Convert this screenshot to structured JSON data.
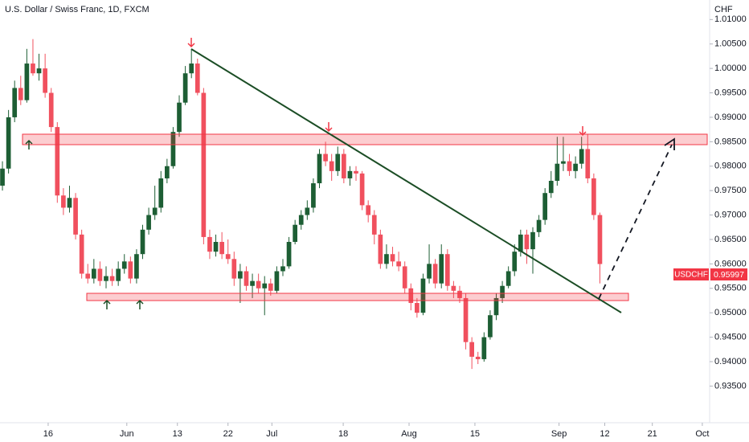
{
  "chart_data": {
    "type": "candlestick",
    "title": "U.S. Dollar / Swiss Franc, 1D, FXCM",
    "y_axis_label": "CHF",
    "symbol": "USDCHF",
    "last_price_label": "0.95997",
    "up_color": "#1d5e34",
    "down_color": "#f0505e",
    "ohlc": [
      [
        0.976,
        0.981,
        0.975,
        0.9795
      ],
      [
        0.9795,
        0.9915,
        0.9785,
        0.99
      ],
      [
        0.99,
        0.9975,
        0.989,
        0.996
      ],
      [
        0.996,
        0.9985,
        0.9925,
        0.9935
      ],
      [
        0.9935,
        1.004,
        0.993,
        1.001
      ],
      [
        1.001,
        1.006,
        0.9985,
        0.999
      ],
      [
        0.999,
        1.003,
        0.9975,
        1.0
      ],
      [
        1.0,
        1.003,
        0.994,
        0.995
      ],
      [
        0.995,
        0.996,
        0.987,
        0.988
      ],
      [
        0.988,
        0.989,
        0.9725,
        0.974
      ],
      [
        0.974,
        0.9755,
        0.97,
        0.9715
      ],
      [
        0.9715,
        0.976,
        0.9705,
        0.9735
      ],
      [
        0.9735,
        0.9745,
        0.965,
        0.966
      ],
      [
        0.966,
        0.967,
        0.957,
        0.958
      ],
      [
        0.958,
        0.96,
        0.956,
        0.957
      ],
      [
        0.957,
        0.961,
        0.956,
        0.959
      ],
      [
        0.959,
        0.9605,
        0.9555,
        0.9565
      ],
      [
        0.9565,
        0.9595,
        0.955,
        0.9575
      ],
      [
        0.9575,
        0.959,
        0.9555,
        0.9565
      ],
      [
        0.9565,
        0.9605,
        0.9555,
        0.959
      ],
      [
        0.959,
        0.962,
        0.958,
        0.9605
      ],
      [
        0.9605,
        0.9615,
        0.956,
        0.957
      ],
      [
        0.957,
        0.963,
        0.956,
        0.962
      ],
      [
        0.962,
        0.968,
        0.961,
        0.967
      ],
      [
        0.967,
        0.9715,
        0.966,
        0.97
      ],
      [
        0.97,
        0.976,
        0.969,
        0.9715
      ],
      [
        0.9715,
        0.979,
        0.9705,
        0.9775
      ],
      [
        0.9775,
        0.9815,
        0.9765,
        0.98
      ],
      [
        0.98,
        0.988,
        0.9795,
        0.987
      ],
      [
        0.987,
        0.9945,
        0.986,
        0.993
      ],
      [
        0.993,
        1.0005,
        0.9925,
        0.999
      ],
      [
        0.999,
        1.004,
        0.998,
        1.001
      ],
      [
        1.001,
        1.002,
        0.9945,
        0.995
      ],
      [
        0.995,
        0.996,
        0.964,
        0.9655
      ],
      [
        0.9655,
        0.967,
        0.961,
        0.9625
      ],
      [
        0.9625,
        0.966,
        0.9615,
        0.9645
      ],
      [
        0.9645,
        0.9665,
        0.961,
        0.962
      ],
      [
        0.962,
        0.965,
        0.96,
        0.961
      ],
      [
        0.961,
        0.9625,
        0.9555,
        0.957
      ],
      [
        0.957,
        0.96,
        0.952,
        0.9585
      ],
      [
        0.9585,
        0.9595,
        0.9545,
        0.9555
      ],
      [
        0.9555,
        0.958,
        0.953,
        0.9565
      ],
      [
        0.9565,
        0.958,
        0.954,
        0.955
      ],
      [
        0.955,
        0.9575,
        0.9495,
        0.956
      ],
      [
        0.956,
        0.957,
        0.9535,
        0.9545
      ],
      [
        0.9545,
        0.9595,
        0.954,
        0.9585
      ],
      [
        0.9585,
        0.961,
        0.9575,
        0.9595
      ],
      [
        0.9595,
        0.9655,
        0.959,
        0.9645
      ],
      [
        0.9645,
        0.969,
        0.964,
        0.968
      ],
      [
        0.968,
        0.971,
        0.967,
        0.97
      ],
      [
        0.97,
        0.973,
        0.969,
        0.9715
      ],
      [
        0.9715,
        0.9775,
        0.9705,
        0.9765
      ],
      [
        0.9765,
        0.9835,
        0.9755,
        0.9825
      ],
      [
        0.9825,
        0.985,
        0.98,
        0.981
      ],
      [
        0.981,
        0.9825,
        0.977,
        0.979
      ],
      [
        0.979,
        0.984,
        0.978,
        0.9825
      ],
      [
        0.9825,
        0.9835,
        0.9765,
        0.9775
      ],
      [
        0.9775,
        0.98,
        0.976,
        0.979
      ],
      [
        0.979,
        0.98,
        0.977,
        0.9785
      ],
      [
        0.9785,
        0.979,
        0.971,
        0.972
      ],
      [
        0.972,
        0.973,
        0.9685,
        0.97
      ],
      [
        0.97,
        0.971,
        0.964,
        0.966
      ],
      [
        0.966,
        0.967,
        0.959,
        0.96
      ],
      [
        0.96,
        0.964,
        0.959,
        0.962
      ],
      [
        0.962,
        0.9635,
        0.9595,
        0.9605
      ],
      [
        0.9605,
        0.9625,
        0.9585,
        0.9595
      ],
      [
        0.9595,
        0.9605,
        0.954,
        0.955
      ],
      [
        0.955,
        0.956,
        0.9505,
        0.952
      ],
      [
        0.952,
        0.953,
        0.949,
        0.95
      ],
      [
        0.95,
        0.958,
        0.9495,
        0.957
      ],
      [
        0.957,
        0.964,
        0.956,
        0.96
      ],
      [
        0.96,
        0.961,
        0.955,
        0.956
      ],
      [
        0.956,
        0.964,
        0.955,
        0.962
      ],
      [
        0.962,
        0.963,
        0.9545,
        0.9555
      ],
      [
        0.9555,
        0.9565,
        0.953,
        0.9545
      ],
      [
        0.9545,
        0.9555,
        0.952,
        0.953
      ],
      [
        0.953,
        0.954,
        0.9425,
        0.944
      ],
      [
        0.944,
        0.945,
        0.9385,
        0.941
      ],
      [
        0.941,
        0.942,
        0.9395,
        0.9405
      ],
      [
        0.9405,
        0.946,
        0.94,
        0.945
      ],
      [
        0.945,
        0.9505,
        0.9445,
        0.9495
      ],
      [
        0.9495,
        0.954,
        0.9485,
        0.953
      ],
      [
        0.953,
        0.9565,
        0.952,
        0.9555
      ],
      [
        0.9555,
        0.9595,
        0.955,
        0.9585
      ],
      [
        0.9585,
        0.964,
        0.9575,
        0.9625
      ],
      [
        0.9625,
        0.967,
        0.9615,
        0.966
      ],
      [
        0.966,
        0.967,
        0.96,
        0.963
      ],
      [
        0.963,
        0.9675,
        0.958,
        0.9665
      ],
      [
        0.9665,
        0.97,
        0.9655,
        0.969
      ],
      [
        0.969,
        0.9755,
        0.968,
        0.9745
      ],
      [
        0.9745,
        0.979,
        0.9735,
        0.977
      ],
      [
        0.977,
        0.986,
        0.976,
        0.9805
      ],
      [
        0.9805,
        0.986,
        0.979,
        0.981
      ],
      [
        0.981,
        0.9825,
        0.978,
        0.979
      ],
      [
        0.979,
        0.982,
        0.9775,
        0.9805
      ],
      [
        0.9805,
        0.986,
        0.9795,
        0.9835
      ],
      [
        0.9835,
        0.9865,
        0.9765,
        0.9775
      ],
      [
        0.9775,
        0.9785,
        0.969,
        0.97
      ],
      [
        0.97,
        0.9705,
        0.956,
        0.95997
      ]
    ],
    "xlim": [
      -0.4,
      116
    ],
    "xticks": [
      {
        "value": 7.5,
        "label": "16"
      },
      {
        "value": 20.4,
        "label": "Jun"
      },
      {
        "value": 28.7,
        "label": "13"
      },
      {
        "value": 37,
        "label": "22"
      },
      {
        "value": 44.2,
        "label": "Jul"
      },
      {
        "value": 55.9,
        "label": "18"
      },
      {
        "value": 66.7,
        "label": "Aug"
      },
      {
        "value": 77.5,
        "label": "15"
      },
      {
        "value": 91.3,
        "label": "Sep"
      },
      {
        "value": 98.8,
        "label": "12"
      },
      {
        "value": 106.6,
        "label": "21"
      },
      {
        "value": 114.8,
        "label": "Oct"
      }
    ],
    "ylim": [
      0.9275,
      1.014
    ],
    "yticks": [
      {
        "value": 1.01,
        "label": "1.01000"
      },
      {
        "value": 1.005,
        "label": "1.00500"
      },
      {
        "value": 1.0,
        "label": "1.00000"
      },
      {
        "value": 0.995,
        "label": "0.99500"
      },
      {
        "value": 0.99,
        "label": "0.99000"
      },
      {
        "value": 0.985,
        "label": "0.98500"
      },
      {
        "value": 0.98,
        "label": "0.98000"
      },
      {
        "value": 0.975,
        "label": "0.97500"
      },
      {
        "value": 0.97,
        "label": "0.97000"
      },
      {
        "value": 0.965,
        "label": "0.96500"
      },
      {
        "value": 0.96,
        "label": "0.96000"
      },
      {
        "value": 0.955,
        "label": "0.95500"
      },
      {
        "value": 0.95,
        "label": "0.95000"
      },
      {
        "value": 0.945,
        "label": "0.94500"
      },
      {
        "value": 0.94,
        "label": "0.94000"
      },
      {
        "value": 0.935,
        "label": "0.93500"
      }
    ]
  }
}
